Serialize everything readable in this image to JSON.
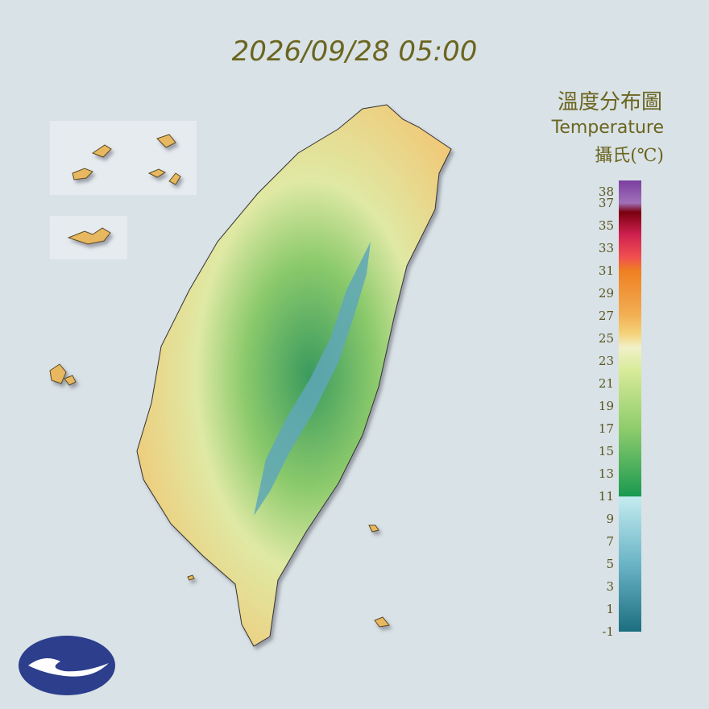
{
  "header": {
    "datetime": "2026/09/28 05:00"
  },
  "legend": {
    "title": "溫度分布圖",
    "subtitle": "Temperature",
    "unit": "攝氏(℃)",
    "ticks": [
      38,
      37,
      35,
      33,
      31,
      29,
      27,
      25,
      23,
      21,
      19,
      17,
      15,
      13,
      11,
      9,
      7,
      5,
      3,
      1,
      -1
    ]
  }
}
